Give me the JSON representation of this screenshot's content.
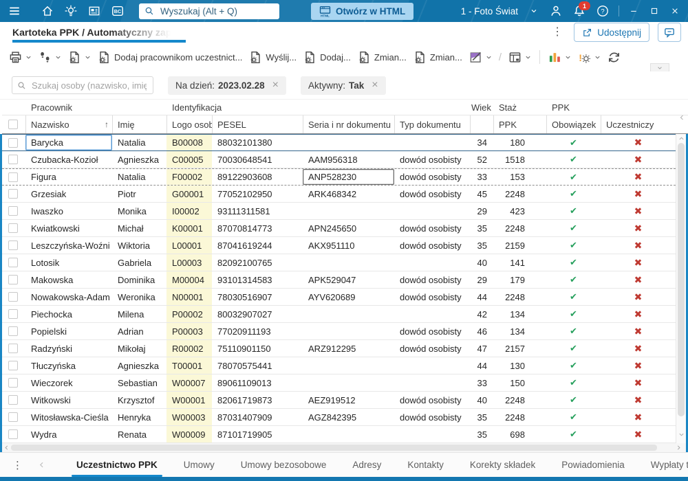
{
  "colors": {
    "header_blue": "#1173a9",
    "accent_blue": "#1588cb",
    "light_blue_button": "#a9d5f1",
    "badge_red": "#e03c31",
    "check_green": "#27a05d",
    "cross_red": "#bf3a32",
    "logo_column_yellow": "#fbf8d7",
    "grid_edge_blue": "#1a86c4"
  },
  "top_bar": {
    "search_placeholder": "Wyszukaj (Alt + Q)",
    "open_html_label": "Otwórz w HTML",
    "company_selector": "1 - Foto Świat",
    "notification_count": "1"
  },
  "tab_bar": {
    "active_tab_title": "Kartoteka PPK / Automatyczny zapis p",
    "share_label": "Udostępnij"
  },
  "toolbar": {
    "buttons": [
      {
        "label": "Dodaj pracownikom uczestnict..."
      },
      {
        "label": "Wyślij..."
      },
      {
        "label": "Dodaj..."
      },
      {
        "label": "Zmian..."
      },
      {
        "label": "Zmian..."
      }
    ]
  },
  "filter_bar": {
    "search_placeholder": "Szukaj osoby (nazwisko, imię, I",
    "remove_glyph": "×",
    "chips": [
      {
        "label": "Na dzień:",
        "value": "2023.02.28"
      },
      {
        "label": "Aktywny:",
        "value": "Tak"
      }
    ]
  },
  "table": {
    "group_headers": {
      "pracownik": "Pracownik",
      "identyfikacja": "Identyfikacja",
      "wiek": "Wiek",
      "staz_line1": "Staż",
      "staz_line2": "PPK",
      "ppk": "PPK"
    },
    "column_headers": {
      "nazwisko": "Nazwisko",
      "imie": "Imię",
      "logo": "Logo osoby",
      "pesel": "PESEL",
      "seria": "Seria i nr dokumentu",
      "typ": "Typ dokumentu",
      "obowiazek": "Obowiązek",
      "uczestniczy": "Uczestniczy"
    },
    "sort_icon": "↑",
    "check_glyph": "✔",
    "cross_glyph": "✖",
    "rows": [
      {
        "nazwisko": "Barycka",
        "imie": "Natalia",
        "logo": "B00008",
        "pesel": "88032101380",
        "seria": "",
        "typ": "",
        "wiek": "34",
        "staz": "180",
        "obowiazek": true,
        "uczestniczy": false,
        "state": "selected",
        "focus_field": "nazwisko"
      },
      {
        "nazwisko": "Czubacka-Kozioł",
        "imie": "Agnieszka",
        "logo": "C00005",
        "pesel": "70030648541",
        "seria": "AAM956318",
        "typ": "dowód osobisty",
        "wiek": "52",
        "staz": "1518",
        "obowiazek": true,
        "uczestniczy": false
      },
      {
        "nazwisko": "Figura",
        "imie": "Natalia",
        "logo": "F00002",
        "pesel": "89122903608",
        "seria": "ANP528230",
        "typ": "dowód osobisty",
        "wiek": "33",
        "staz": "153",
        "obowiazek": true,
        "uczestniczy": false,
        "state": "dashed",
        "focus_field": "seria"
      },
      {
        "nazwisko": "Grzesiak",
        "imie": "Piotr",
        "logo": "G00001",
        "pesel": "77052102950",
        "seria": "ARK468342",
        "typ": "dowód osobisty",
        "wiek": "45",
        "staz": "2248",
        "obowiazek": true,
        "uczestniczy": false
      },
      {
        "nazwisko": "Iwaszko",
        "imie": "Monika",
        "logo": "I00002",
        "pesel": "93111311581",
        "seria": "",
        "typ": "",
        "wiek": "29",
        "staz": "423",
        "obowiazek": true,
        "uczestniczy": false
      },
      {
        "nazwisko": "Kwiatkowski",
        "imie": "Michał",
        "logo": "K00001",
        "pesel": "87070814773",
        "seria": "APN245650",
        "typ": "dowód osobisty",
        "wiek": "35",
        "staz": "2248",
        "obowiazek": true,
        "uczestniczy": false
      },
      {
        "nazwisko": "Leszczyńska-Woźni",
        "imie": "Wiktoria",
        "logo": "L00001",
        "pesel": "87041619244",
        "seria": "AKX951110",
        "typ": "dowód osobisty",
        "wiek": "35",
        "staz": "2159",
        "obowiazek": true,
        "uczestniczy": false
      },
      {
        "nazwisko": "Lotosik",
        "imie": "Gabriela",
        "logo": "L00003",
        "pesel": "82092100765",
        "seria": "",
        "typ": "",
        "wiek": "40",
        "staz": "141",
        "obowiazek": true,
        "uczestniczy": false
      },
      {
        "nazwisko": "Makowska",
        "imie": "Dominika",
        "logo": "M00004",
        "pesel": "93101314583",
        "seria": "APK529047",
        "typ": "dowód osobisty",
        "wiek": "29",
        "staz": "179",
        "obowiazek": true,
        "uczestniczy": false
      },
      {
        "nazwisko": "Nowakowska-Adam",
        "imie": "Weronika",
        "logo": "N00001",
        "pesel": "78030516907",
        "seria": "AYV620689",
        "typ": "dowód osobisty",
        "wiek": "44",
        "staz": "2248",
        "obowiazek": true,
        "uczestniczy": false
      },
      {
        "nazwisko": "Piechocka",
        "imie": "Milena",
        "logo": "P00002",
        "pesel": "80032907027",
        "seria": "",
        "typ": "",
        "wiek": "42",
        "staz": "134",
        "obowiazek": true,
        "uczestniczy": false
      },
      {
        "nazwisko": "Popielski",
        "imie": "Adrian",
        "logo": "P00003",
        "pesel": "77020911193",
        "seria": "",
        "typ": "dowód osobisty",
        "wiek": "46",
        "staz": "134",
        "obowiazek": true,
        "uczestniczy": false
      },
      {
        "nazwisko": "Radzyński",
        "imie": "Mikołaj",
        "logo": "R00002",
        "pesel": "75110901150",
        "seria": "ARZ912295",
        "typ": "dowód osobisty",
        "wiek": "47",
        "staz": "2157",
        "obowiazek": true,
        "uczestniczy": false
      },
      {
        "nazwisko": "Tłuczyńska",
        "imie": "Agnieszka",
        "logo": "T00001",
        "pesel": "78070575441",
        "seria": "",
        "typ": "",
        "wiek": "44",
        "staz": "130",
        "obowiazek": true,
        "uczestniczy": false
      },
      {
        "nazwisko": "Wieczorek",
        "imie": "Sebastian",
        "logo": "W00007",
        "pesel": "89061109013",
        "seria": "",
        "typ": "",
        "wiek": "33",
        "staz": "150",
        "obowiazek": true,
        "uczestniczy": false
      },
      {
        "nazwisko": "Witkowski",
        "imie": "Krzysztof",
        "logo": "W00001",
        "pesel": "82061719873",
        "seria": "AEZ919512",
        "typ": "dowód osobisty",
        "wiek": "40",
        "staz": "2248",
        "obowiazek": true,
        "uczestniczy": false
      },
      {
        "nazwisko": "Witosławska-Cieśla",
        "imie": "Henryka",
        "logo": "W00003",
        "pesel": "87031407909",
        "seria": "AGZ842395",
        "typ": "dowód osobisty",
        "wiek": "35",
        "staz": "2248",
        "obowiazek": true,
        "uczestniczy": false
      },
      {
        "nazwisko": "Wydra",
        "imie": "Renata",
        "logo": "W00009",
        "pesel": "87101719905",
        "seria": "",
        "typ": "",
        "wiek": "35",
        "staz": "698",
        "obowiazek": true,
        "uczestniczy": false
      }
    ]
  },
  "bottom_tabs": {
    "tabs": [
      {
        "label": "Uczestnictwo PPK",
        "active": true
      },
      {
        "label": "Umowy"
      },
      {
        "label": "Umowy bezosobowe"
      },
      {
        "label": "Adresy"
      },
      {
        "label": "Kontakty"
      },
      {
        "label": "Korekty składek"
      },
      {
        "label": "Powiadomienia"
      },
      {
        "label": "Wypłaty transf"
      }
    ]
  }
}
